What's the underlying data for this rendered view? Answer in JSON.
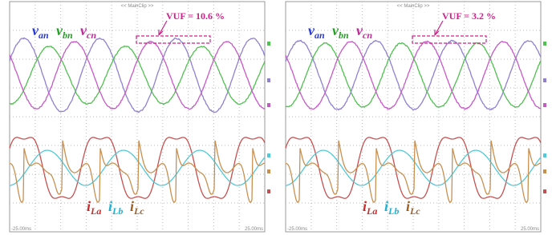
{
  "panels": [
    {
      "header": "<< MainClip >>",
      "vuf": "VUF = 10.6 %",
      "voltage_labels": [
        {
          "main": "v",
          "sub": "an"
        },
        {
          "main": "v",
          "sub": "bn"
        },
        {
          "main": "v",
          "sub": "cn"
        }
      ],
      "current_labels": [
        {
          "main": "i",
          "sub": "La"
        },
        {
          "main": "i",
          "sub": "Lb"
        },
        {
          "main": "i",
          "sub": "Lc"
        }
      ],
      "time_start": "-25.00ms",
      "time_end": "25.00ms"
    },
    {
      "header": "<< MainClip >>",
      "vuf": "VUF = 3.2 %",
      "voltage_labels": [
        {
          "main": "v",
          "sub": "an"
        },
        {
          "main": "v",
          "sub": "bn"
        },
        {
          "main": "v",
          "sub": "cn"
        }
      ],
      "current_labels": [
        {
          "main": "i",
          "sub": "La"
        },
        {
          "main": "i",
          "sub": "Lb"
        },
        {
          "main": "i",
          "sub": "Lc"
        }
      ],
      "time_start": "-25.00ms",
      "time_end": "25.00ms"
    }
  ]
}
